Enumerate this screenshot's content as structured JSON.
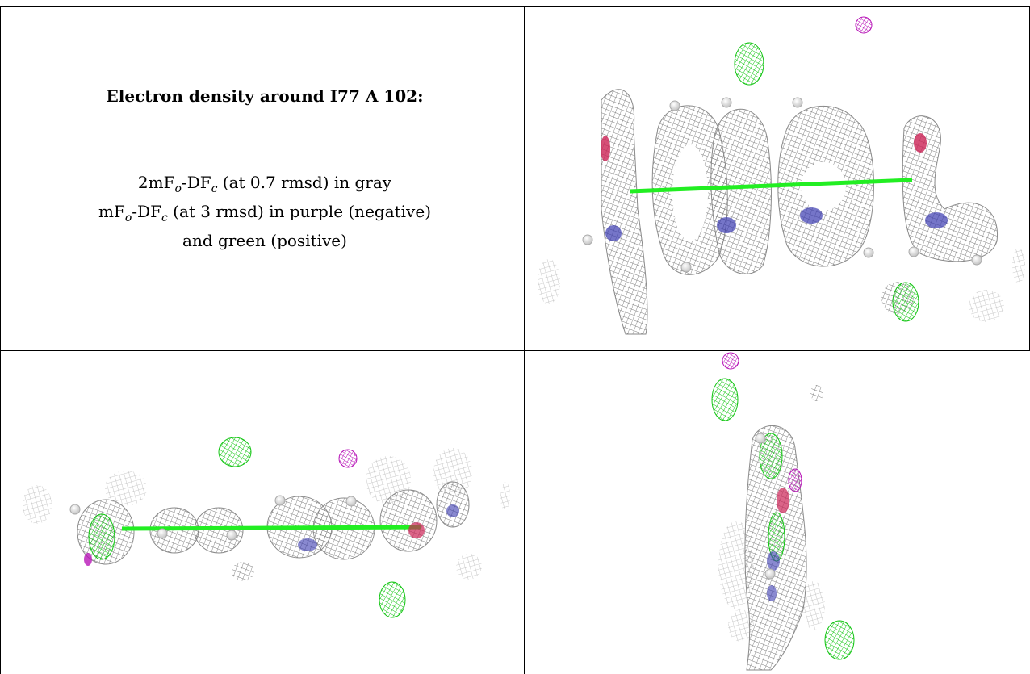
{
  "caption": {
    "title": "Electron density around I77 A 102:",
    "line1": {
      "a": "2mF",
      "a_sub": "o",
      "b": "-DF",
      "b_sub": "c",
      "c": " (at 0.7 rmsd) in gray"
    },
    "line2": {
      "a": "mF",
      "a_sub": "o",
      "b": "-DF",
      "b_sub": "c",
      "c": " (at 3 rmsd) in purple (negative)"
    },
    "line3": "and green (positive)"
  },
  "colors": {
    "mesh_gray": "#8a8a8a",
    "positive_green": "#22ee22",
    "negative_purple": "#cc22cc",
    "nitrogen_blue": "#3a3ab0",
    "oxygen_red": "#cc2255",
    "hydrogen_white": "#f2f2f2"
  },
  "panels": [
    {
      "view": "top-right"
    },
    {
      "view": "bottom-left"
    },
    {
      "view": "bottom-right"
    }
  ]
}
